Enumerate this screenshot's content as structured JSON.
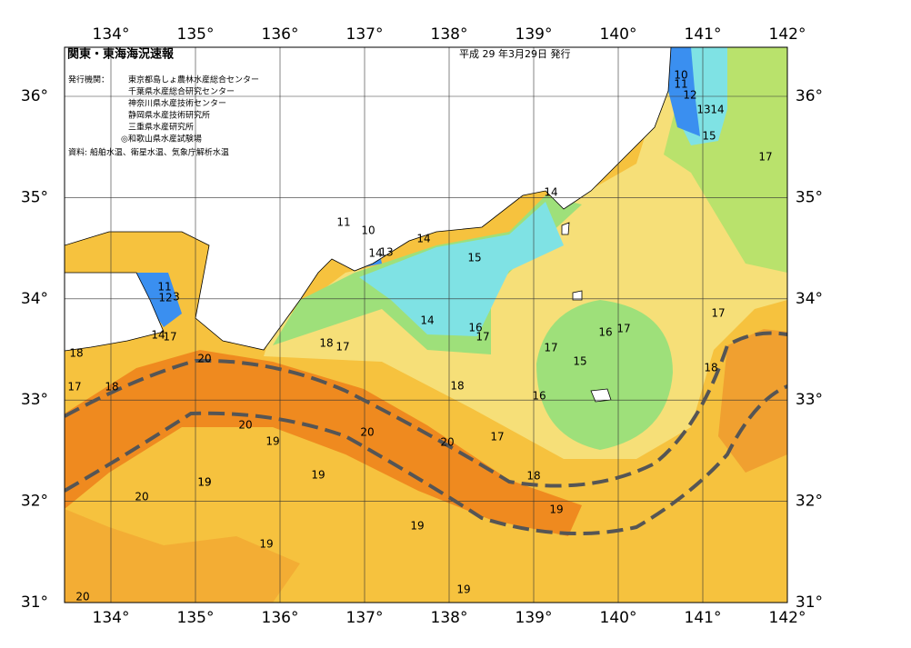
{
  "header": {
    "title": "関東・東海海況速報",
    "date": "平成 29 年3月29日 発行",
    "issuer_label": "発行機関：",
    "issuers": [
      "東京都島しょ農林水産総合センター",
      "千葉県水産総合研究センター",
      "神奈川県水産技術センター",
      "静岡県水産技術研究所",
      "三重県水産研究所",
      "◎和歌山県水産試験場"
    ],
    "source": "資料: 船舶水温、衛星水温、気象庁解析水温"
  },
  "map": {
    "lon_ticks": [
      {
        "value": 134,
        "label": "134°"
      },
      {
        "value": 135,
        "label": "135°"
      },
      {
        "value": 136,
        "label": "136°"
      },
      {
        "value": 137,
        "label": "137°"
      },
      {
        "value": 138,
        "label": "138°"
      },
      {
        "value": 139,
        "label": "139°"
      },
      {
        "value": 140,
        "label": "140°"
      },
      {
        "value": 141,
        "label": "141°"
      },
      {
        "value": 142,
        "label": "142°"
      }
    ],
    "lat_ticks": [
      {
        "value": 36,
        "label": "36°"
      },
      {
        "value": 35,
        "label": "35°"
      },
      {
        "value": 34,
        "label": "34°"
      },
      {
        "value": 33,
        "label": "33°"
      },
      {
        "value": 32,
        "label": "32°"
      },
      {
        "value": 31,
        "label": "31°"
      }
    ],
    "contour_labels": [
      "20",
      "18",
      "17",
      "18",
      "20",
      "19",
      "20",
      "20",
      "19",
      "19",
      "20",
      "19",
      "18",
      "17",
      "18",
      "16",
      "15",
      "17",
      "16",
      "17",
      "18",
      "17",
      "17",
      "15",
      "13",
      "14",
      "12",
      "11",
      "10",
      "14",
      "15",
      "14",
      "14",
      "13",
      "11",
      "10",
      "14",
      "16",
      "17",
      "18",
      "17",
      "11",
      "12",
      "3",
      "14",
      "17",
      "19",
      "19",
      "19",
      "19",
      "20"
    ]
  }
}
